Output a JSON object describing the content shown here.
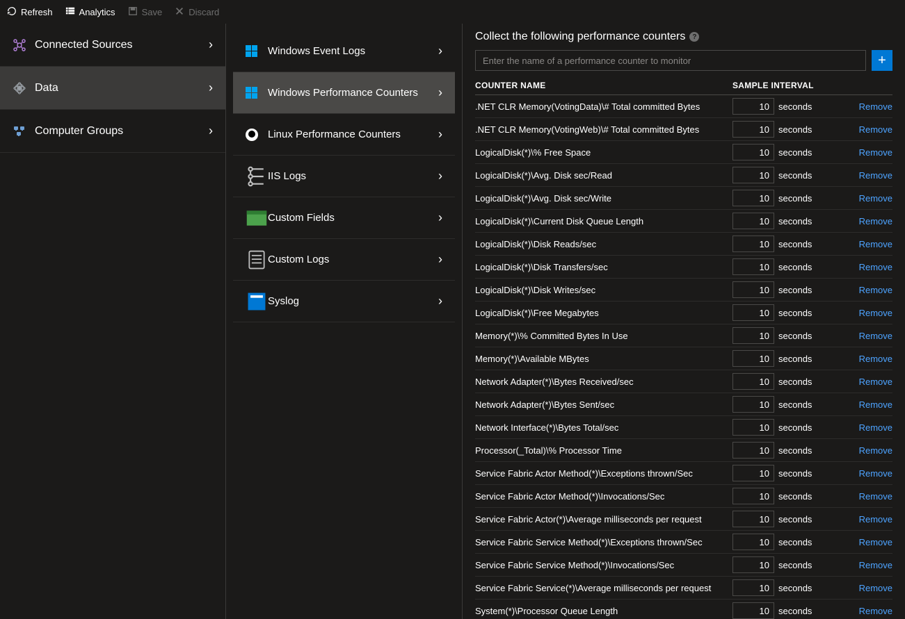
{
  "toolbar": {
    "refresh": "Refresh",
    "analytics": "Analytics",
    "save": "Save",
    "discard": "Discard"
  },
  "sidebar": {
    "items": [
      {
        "label": "Connected Sources",
        "key": "connected-sources"
      },
      {
        "label": "Data",
        "key": "data"
      },
      {
        "label": "Computer Groups",
        "key": "computer-groups"
      }
    ],
    "selected_key": "data"
  },
  "sublist": {
    "items": [
      {
        "label": "Windows Event Logs",
        "key": "win-event-logs",
        "icon": "windows"
      },
      {
        "label": "Windows Performance Counters",
        "key": "win-perf",
        "icon": "windows"
      },
      {
        "label": "Linux Performance Counters",
        "key": "linux-perf",
        "icon": "linux"
      },
      {
        "label": "IIS Logs",
        "key": "iis-logs",
        "icon": "iis"
      },
      {
        "label": "Custom Fields",
        "key": "custom-fields",
        "icon": "fields"
      },
      {
        "label": "Custom Logs",
        "key": "custom-logs",
        "icon": "logs"
      },
      {
        "label": "Syslog",
        "key": "syslog",
        "icon": "syslog"
      }
    ],
    "selected_key": "win-perf"
  },
  "panel": {
    "heading": "Collect the following performance counters",
    "add_placeholder": "Enter the name of a performance counter to monitor",
    "col_counter": "COUNTER NAME",
    "col_interval": "SAMPLE INTERVAL",
    "unit": "seconds",
    "remove_label": "Remove",
    "default_interval": "10",
    "counters": [
      {
        "name": ".NET CLR Memory(VotingData)\\# Total committed Bytes",
        "interval": "10"
      },
      {
        "name": ".NET CLR Memory(VotingWeb)\\# Total committed Bytes",
        "interval": "10"
      },
      {
        "name": "LogicalDisk(*)\\% Free Space",
        "interval": "10"
      },
      {
        "name": "LogicalDisk(*)\\Avg. Disk sec/Read",
        "interval": "10"
      },
      {
        "name": "LogicalDisk(*)\\Avg. Disk sec/Write",
        "interval": "10"
      },
      {
        "name": "LogicalDisk(*)\\Current Disk Queue Length",
        "interval": "10"
      },
      {
        "name": "LogicalDisk(*)\\Disk Reads/sec",
        "interval": "10"
      },
      {
        "name": "LogicalDisk(*)\\Disk Transfers/sec",
        "interval": "10"
      },
      {
        "name": "LogicalDisk(*)\\Disk Writes/sec",
        "interval": "10"
      },
      {
        "name": "LogicalDisk(*)\\Free Megabytes",
        "interval": "10"
      },
      {
        "name": "Memory(*)\\% Committed Bytes In Use",
        "interval": "10"
      },
      {
        "name": "Memory(*)\\Available MBytes",
        "interval": "10"
      },
      {
        "name": "Network Adapter(*)\\Bytes Received/sec",
        "interval": "10"
      },
      {
        "name": "Network Adapter(*)\\Bytes Sent/sec",
        "interval": "10"
      },
      {
        "name": "Network Interface(*)\\Bytes Total/sec",
        "interval": "10"
      },
      {
        "name": "Processor(_Total)\\% Processor Time",
        "interval": "10"
      },
      {
        "name": "Service Fabric Actor Method(*)\\Exceptions thrown/Sec",
        "interval": "10"
      },
      {
        "name": "Service Fabric Actor Method(*)\\Invocations/Sec",
        "interval": "10"
      },
      {
        "name": "Service Fabric Actor(*)\\Average milliseconds per request",
        "interval": "10"
      },
      {
        "name": "Service Fabric Service Method(*)\\Exceptions thrown/Sec",
        "interval": "10"
      },
      {
        "name": "Service Fabric Service Method(*)\\Invocations/Sec",
        "interval": "10"
      },
      {
        "name": "Service Fabric Service(*)\\Average milliseconds per request",
        "interval": "10"
      },
      {
        "name": "System(*)\\Processor Queue Length",
        "interval": "10"
      }
    ]
  },
  "colors": {
    "bg": "#1b1a19",
    "border": "#3b3a39",
    "row_border": "#2d2c2b",
    "selected_nav": "#3b3a39",
    "selected_sub": "#4a4947",
    "link": "#4da3ff",
    "accent": "#0078d4",
    "disabled": "#6e6e6e"
  }
}
